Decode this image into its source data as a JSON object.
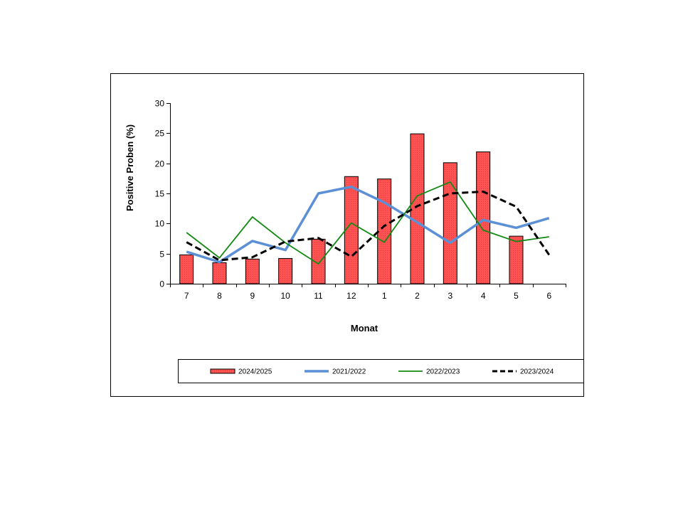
{
  "chart_data": {
    "type": "bar",
    "title": "",
    "xlabel": "Monat",
    "ylabel": "Positive Proben (%)",
    "ylim": [
      0,
      30
    ],
    "yticks": [
      0,
      5,
      10,
      15,
      20,
      25,
      30
    ],
    "grid": false,
    "legend_position": "bottom",
    "categories": [
      "7",
      "8",
      "9",
      "10",
      "11",
      "12",
      "1",
      "2",
      "3",
      "4",
      "5",
      "6"
    ],
    "series": [
      {
        "name": "2024/2025",
        "kind": "bar",
        "color": "#ff4d4d",
        "values": [
          4.8,
          3.5,
          4.1,
          4.2,
          7.4,
          17.8,
          17.4,
          24.9,
          20.1,
          21.9,
          7.9,
          null
        ]
      },
      {
        "name": "2021/2022",
        "kind": "line",
        "color": "#5b8fd6",
        "values": [
          5.3,
          3.6,
          7.1,
          5.6,
          15.0,
          16.1,
          13.5,
          10.2,
          6.8,
          10.6,
          9.3,
          10.9
        ]
      },
      {
        "name": "2022/2023",
        "kind": "line",
        "color": "#138a13",
        "values": [
          8.5,
          4.3,
          11.1,
          6.8,
          3.3,
          10.1,
          6.9,
          14.6,
          16.9,
          8.9,
          7.0,
          7.8
        ]
      },
      {
        "name": "2023/2024",
        "kind": "line",
        "color": "#000000",
        "dashed": true,
        "values": [
          6.9,
          3.9,
          4.4,
          7.0,
          7.6,
          4.5,
          9.6,
          12.9,
          15.0,
          15.3,
          12.8,
          4.8
        ]
      }
    ]
  }
}
